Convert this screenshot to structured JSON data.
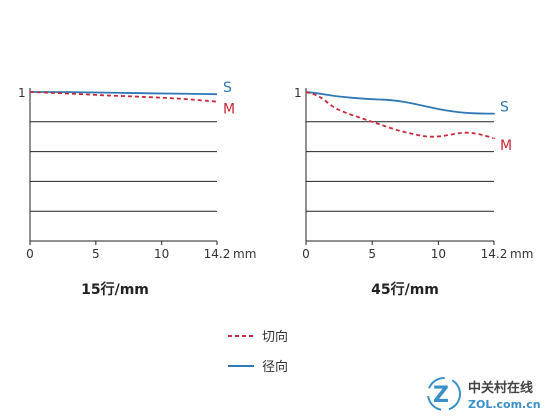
{
  "chart_data": [
    {
      "type": "line",
      "title": "15行/mm",
      "x_unit": "mm",
      "x_ticks": [
        0,
        5,
        10,
        14.2
      ],
      "x_tick_labels": [
        "0",
        "5",
        "10",
        "14.2"
      ],
      "y_tick_labels": [
        "1"
      ],
      "xlim": [
        0,
        14.2
      ],
      "ylim": [
        0,
        1
      ],
      "grid": "horizontal",
      "series": [
        {
          "name": "S",
          "style": "solid",
          "color": "#2f78b5",
          "x": [
            0,
            2,
            4,
            6,
            8,
            10,
            12,
            14.2
          ],
          "y": [
            1.0,
            1.0,
            0.998,
            0.995,
            0.993,
            0.99,
            0.988,
            0.985
          ]
        },
        {
          "name": "M",
          "style": "dashed",
          "color": "#c8283a",
          "x": [
            0,
            2,
            4,
            6,
            8,
            10,
            12,
            14.2
          ],
          "y": [
            1.0,
            0.993,
            0.985,
            0.976,
            0.97,
            0.962,
            0.952,
            0.935
          ]
        }
      ]
    },
    {
      "type": "line",
      "title": "45行/mm",
      "x_unit": "mm",
      "x_ticks": [
        0,
        5,
        10,
        14.2
      ],
      "x_tick_labels": [
        "0",
        "5",
        "10",
        "14.2"
      ],
      "y_tick_labels": [
        "1"
      ],
      "xlim": [
        0,
        14.2
      ],
      "ylim": [
        0,
        1
      ],
      "grid": "horizontal",
      "series": [
        {
          "name": "S",
          "style": "solid",
          "color": "#2f78b5",
          "x": [
            0,
            1,
            2,
            3,
            4,
            5,
            6,
            7,
            8,
            9,
            10,
            11,
            12,
            13,
            14.2
          ],
          "y": [
            1.0,
            0.99,
            0.975,
            0.965,
            0.957,
            0.952,
            0.948,
            0.94,
            0.925,
            0.905,
            0.885,
            0.87,
            0.86,
            0.855,
            0.855
          ]
        },
        {
          "name": "M",
          "style": "dashed",
          "color": "#c8283a",
          "x": [
            0,
            1,
            2,
            3,
            4,
            5,
            6,
            7,
            8,
            9,
            10,
            11,
            12,
            13,
            14.2
          ],
          "y": [
            1.0,
            0.975,
            0.9,
            0.86,
            0.83,
            0.8,
            0.77,
            0.74,
            0.72,
            0.7,
            0.7,
            0.715,
            0.73,
            0.72,
            0.69
          ]
        }
      ]
    }
  ],
  "legend": [
    {
      "label": "切向",
      "style": "dashed",
      "color": "#c8283a"
    },
    {
      "label": "径向",
      "style": "solid",
      "color": "#2f78b5"
    }
  ],
  "watermark": {
    "cn": "中关村在线",
    "en": "ZOL.com.cn"
  }
}
